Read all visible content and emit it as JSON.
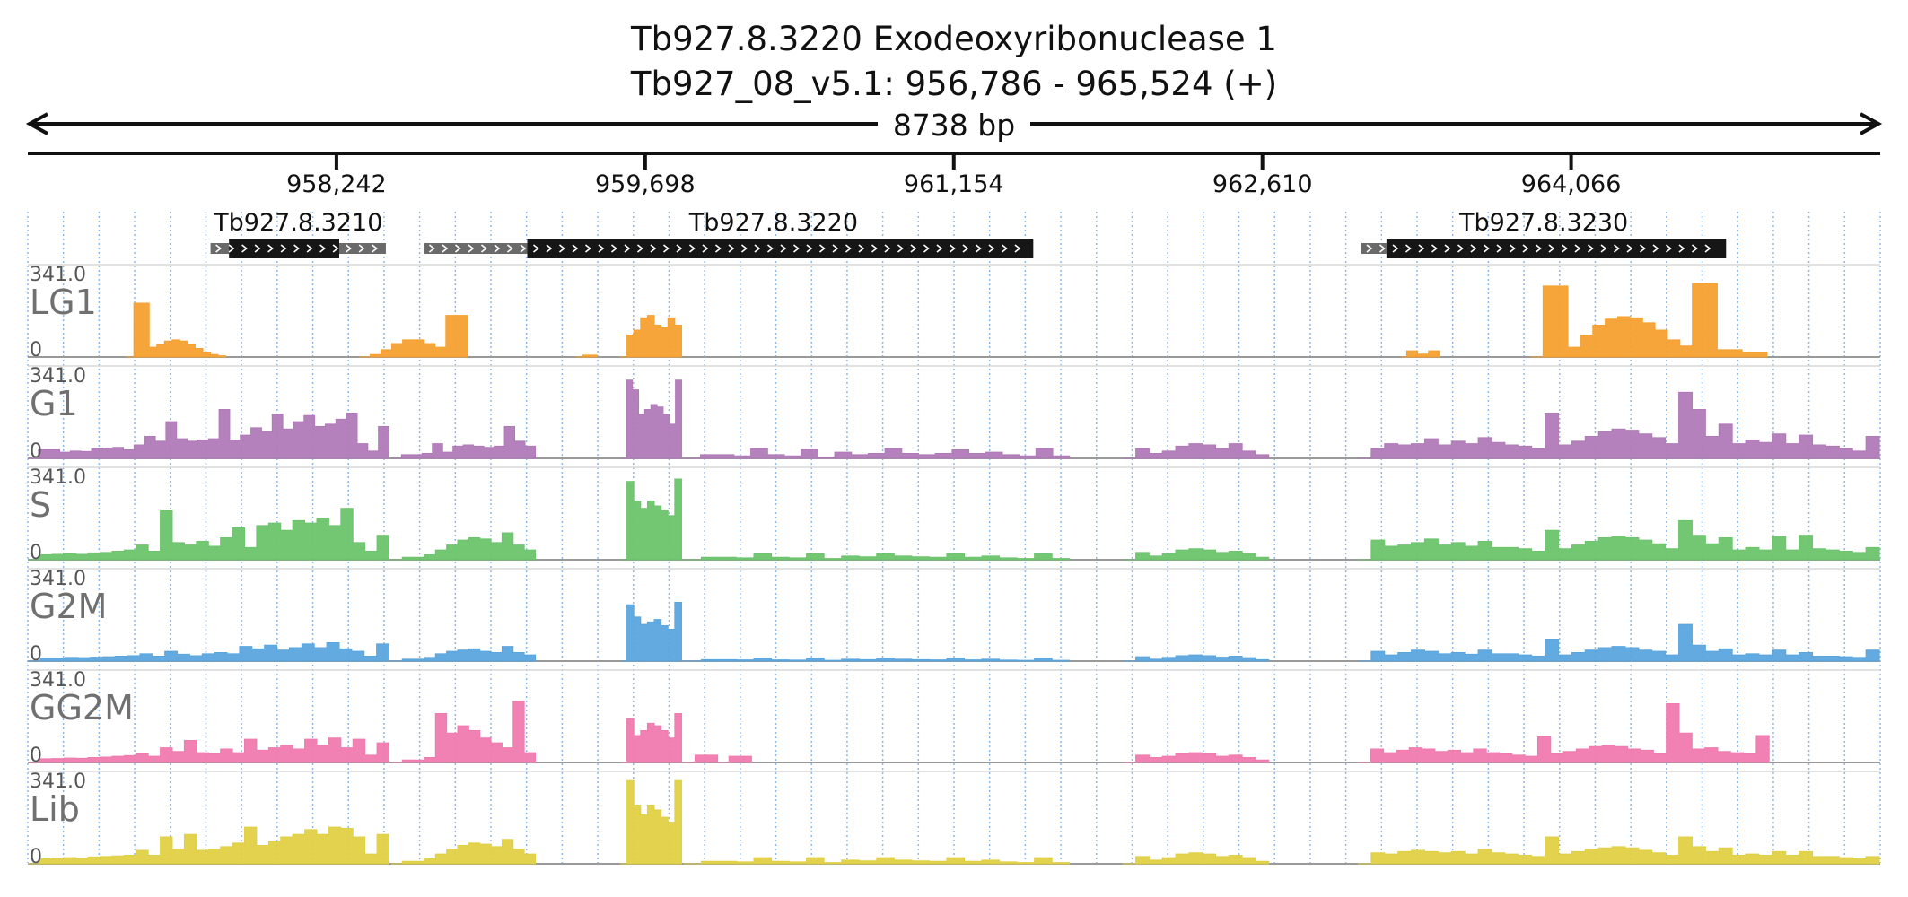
{
  "header": {
    "title": "Tb927.8.3220  Exodeoxyribonuclease 1",
    "location": "Tb927_08_v5.1: 956,786 - 965,524 (+)",
    "length_label": "8738 bp"
  },
  "chart_data": {
    "type": "area",
    "region": {
      "chromosome": "Tb927_08_v5.1",
      "start": 956786,
      "end": 965524,
      "strand": "+"
    },
    "xlim": [
      956786,
      965524
    ],
    "x_ticks": [
      958242,
      959698,
      961154,
      962610,
      964066
    ],
    "x_tick_labels": [
      "958,242",
      "959,698",
      "961,154",
      "962,610",
      "964,066"
    ],
    "grid": true,
    "genes": [
      {
        "name": "Tb927.8.3210",
        "utr_start": 957648,
        "cds_start": 957735,
        "cds_end": 958255,
        "utr_end": 958475
      },
      {
        "name": "Tb927.8.3220",
        "utr_start": 958655,
        "cds_start": 959142,
        "cds_end": 961529,
        "utr_end": 961529
      },
      {
        "name": "Tb927.8.3230",
        "utr_start": 963077,
        "cds_start": 963195,
        "cds_end": 964797,
        "utr_end": 964797
      }
    ],
    "y_max_label": "341.0",
    "y_min_label": "0",
    "ylim": [
      0,
      341
    ],
    "series": [
      {
        "name": "LG1",
        "color": "#f5a030",
        "segments": [
          {
            "start": 957250,
            "end": 957720,
            "values": [
              0,
              220,
              220,
              40,
              50,
              65,
              70,
              65,
              50,
              35,
              20,
              10,
              5,
              0
            ]
          },
          {
            "start": 958350,
            "end": 958860,
            "values": [
              0,
              10,
              30,
              55,
              70,
              70,
              55,
              40,
              170,
              170,
              0
            ]
          },
          {
            "start": 959370,
            "end": 959470,
            "values": [
              0,
              8,
              8,
              0
            ]
          },
          {
            "start": 959580,
            "end": 959870,
            "values": [
              0,
              90,
              110,
              160,
              170,
              130,
              120,
              160,
              130,
              0
            ]
          },
          {
            "start": 963265,
            "end": 963445,
            "values": [
              0,
              25,
              25,
              12,
              12,
              25,
              25,
              0
            ]
          },
          {
            "start": 963875,
            "end": 964990,
            "values": [
              0,
              290,
              290,
              40,
              90,
              130,
              155,
              165,
              160,
              140,
              110,
              70,
              45,
              300,
              300,
              30,
              30,
              20,
              20,
              0
            ]
          }
        ]
      },
      {
        "name": "G1",
        "color": "#b07ab8",
        "segments": [
          {
            "start": 956786,
            "end": 958490,
            "values": [
              0,
              35,
              35,
              25,
              30,
              28,
              40,
              42,
              45,
              35,
              55,
              90,
              70,
              150,
              80,
              70,
              75,
              80,
              200,
              75,
              95,
              125,
              110,
              180,
              120,
              150,
              175,
              130,
              140,
              160,
              185,
              60,
              30,
              130,
              0
            ]
          },
          {
            "start": 958500,
            "end": 959180,
            "values": [
              0,
              15,
              15,
              20,
              60,
              25,
              50,
              55,
              50,
              45,
              50,
              130,
              70,
              50,
              0
            ]
          },
          {
            "start": 959580,
            "end": 959870,
            "values": [
              0,
              320,
              280,
              180,
              200,
              220,
              210,
              180,
              140,
              320,
              0
            ]
          },
          {
            "start": 959880,
            "end": 961700,
            "values": [
              0,
              15,
              15,
              10,
              40,
              15,
              10,
              35,
              5,
              25,
              15,
              20,
              40,
              20,
              15,
              20,
              35,
              20,
              25,
              15,
              10,
              40,
              10,
              0
            ]
          },
          {
            "start": 961950,
            "end": 962640,
            "values": [
              0,
              40,
              20,
              30,
              50,
              60,
              55,
              40,
              60,
              30,
              15,
              0
            ]
          },
          {
            "start": 963060,
            "end": 965520,
            "values": [
              0,
              40,
              60,
              55,
              60,
              80,
              55,
              70,
              60,
              85,
              65,
              55,
              50,
              40,
              185,
              55,
              70,
              90,
              110,
              120,
              115,
              100,
              85,
              60,
              270,
              200,
              90,
              140,
              60,
              75,
              65,
              100,
              60,
              95,
              55,
              50,
              40,
              30,
              90,
              0
            ]
          }
        ]
      },
      {
        "name": "S",
        "color": "#6cc46c",
        "segments": [
          {
            "start": 956786,
            "end": 958490,
            "values": [
              0,
              20,
              22,
              25,
              22,
              28,
              30,
              35,
              40,
              60,
              35,
              200,
              70,
              60,
              75,
              55,
              90,
              130,
              50,
              140,
              150,
              120,
              160,
              150,
              170,
              140,
              210,
              70,
              35,
              100,
              0
            ]
          },
          {
            "start": 958500,
            "end": 959180,
            "values": [
              0,
              10,
              10,
              20,
              40,
              60,
              80,
              90,
              85,
              70,
              110,
              60,
              40,
              0
            ]
          },
          {
            "start": 959580,
            "end": 959870,
            "values": [
              0,
              320,
              240,
              210,
              240,
              220,
              200,
              180,
              330,
              0
            ]
          },
          {
            "start": 959880,
            "end": 961700,
            "values": [
              0,
              10,
              10,
              8,
              25,
              10,
              8,
              25,
              5,
              15,
              12,
              25,
              15,
              12,
              10,
              25,
              10,
              15,
              8,
              5,
              25,
              5,
              0
            ]
          },
          {
            "start": 961950,
            "end": 962640,
            "values": [
              0,
              30,
              15,
              25,
              40,
              45,
              40,
              30,
              35,
              25,
              10,
              0
            ]
          },
          {
            "start": 963060,
            "end": 965520,
            "values": [
              0,
              80,
              55,
              60,
              70,
              85,
              60,
              70,
              55,
              75,
              50,
              50,
              45,
              35,
              120,
              45,
              60,
              75,
              90,
              95,
              90,
              80,
              65,
              45,
              160,
              100,
              65,
              90,
              40,
              50,
              40,
              95,
              40,
              100,
              45,
              40,
              35,
              30,
              50,
              0
            ]
          }
        ]
      },
      {
        "name": "G2M",
        "color": "#5aa5de",
        "segments": [
          {
            "start": 956786,
            "end": 958490,
            "values": [
              0,
              12,
              12,
              15,
              14,
              16,
              18,
              20,
              22,
              30,
              20,
              40,
              28,
              22,
              30,
              35,
              30,
              60,
              50,
              65,
              45,
              55,
              70,
              55,
              75,
              50,
              40,
              20,
              70,
              0
            ]
          },
          {
            "start": 958500,
            "end": 959180,
            "values": [
              0,
              8,
              8,
              15,
              30,
              40,
              45,
              50,
              40,
              35,
              60,
              35,
              25,
              0
            ]
          },
          {
            "start": 959580,
            "end": 959870,
            "values": [
              0,
              230,
              180,
              150,
              160,
              170,
              145,
              130,
              240,
              0
            ]
          },
          {
            "start": 959880,
            "end": 961700,
            "values": [
              0,
              6,
              6,
              5,
              12,
              5,
              4,
              12,
              3,
              8,
              6,
              12,
              8,
              6,
              5,
              12,
              5,
              8,
              4,
              3,
              12,
              3,
              0
            ]
          },
          {
            "start": 961950,
            "end": 962640,
            "values": [
              0,
              18,
              8,
              15,
              22,
              25,
              22,
              16,
              20,
              14,
              6,
              0
            ]
          },
          {
            "start": 963060,
            "end": 965520,
            "values": [
              0,
              40,
              25,
              35,
              45,
              40,
              30,
              35,
              28,
              45,
              30,
              30,
              25,
              20,
              90,
              25,
              35,
              45,
              55,
              60,
              55,
              45,
              40,
              25,
              150,
              65,
              40,
              50,
              25,
              30,
              25,
              45,
              25,
              35,
              20,
              20,
              18,
              15,
              45,
              0
            ]
          }
        ]
      },
      {
        "name": "GG2M",
        "color": "#f07aae",
        "segments": [
          {
            "start": 956786,
            "end": 958490,
            "values": [
              0,
              15,
              16,
              18,
              17,
              20,
              22,
              25,
              28,
              35,
              25,
              60,
              45,
              90,
              40,
              35,
              55,
              40,
              95,
              50,
              60,
              70,
              55,
              95,
              70,
              100,
              60,
              95,
              30,
              80,
              0
            ]
          },
          {
            "start": 958500,
            "end": 959180,
            "values": [
              0,
              10,
              10,
              20,
              200,
              120,
              150,
              130,
              100,
              80,
              60,
              250,
              40,
              0
            ]
          },
          {
            "start": 959580,
            "end": 959870,
            "values": [
              0,
              180,
              110,
              130,
              160,
              150,
              130,
              100,
              200,
              0
            ]
          },
          {
            "start": 959880,
            "end": 960200,
            "values": [
              0,
              30,
              30,
              0,
              25,
              25,
              0
            ]
          },
          {
            "start": 961950,
            "end": 962640,
            "values": [
              0,
              30,
              20,
              25,
              35,
              40,
              35,
              25,
              30,
              20,
              10,
              0
            ]
          },
          {
            "start": 963060,
            "end": 965000,
            "values": [
              0,
              55,
              40,
              50,
              60,
              55,
              45,
              50,
              40,
              55,
              40,
              35,
              30,
              25,
              105,
              35,
              45,
              55,
              65,
              70,
              65,
              55,
              50,
              35,
              240,
              120,
              55,
              60,
              45,
              40,
              35,
              110,
              0
            ]
          }
        ]
      },
      {
        "name": "Lib",
        "color": "#e0d045",
        "segments": [
          {
            "start": 956786,
            "end": 958490,
            "values": [
              0,
              20,
              22,
              25,
              22,
              28,
              30,
              32,
              35,
              55,
              35,
              110,
              60,
              120,
              55,
              60,
              70,
              85,
              150,
              75,
              90,
              110,
              120,
              140,
              120,
              150,
              145,
              110,
              40,
              120,
              0
            ]
          },
          {
            "start": 958500,
            "end": 959180,
            "values": [
              0,
              10,
              10,
              20,
              40,
              60,
              75,
              85,
              80,
              70,
              100,
              60,
              40,
              0
            ]
          },
          {
            "start": 959580,
            "end": 959870,
            "values": [
              0,
              340,
              240,
              200,
              240,
              220,
              190,
              170,
              340,
              0
            ]
          },
          {
            "start": 959880,
            "end": 961700,
            "values": [
              0,
              10,
              10,
              8,
              25,
              10,
              8,
              25,
              5,
              15,
              12,
              25,
              15,
              12,
              10,
              25,
              10,
              15,
              8,
              5,
              25,
              5,
              0
            ]
          },
          {
            "start": 961950,
            "end": 962640,
            "values": [
              0,
              30,
              15,
              25,
              40,
              45,
              40,
              30,
              35,
              25,
              10,
              0
            ]
          },
          {
            "start": 963060,
            "end": 965520,
            "values": [
              0,
              45,
              40,
              50,
              55,
              50,
              45,
              50,
              40,
              60,
              45,
              40,
              35,
              30,
              110,
              40,
              50,
              60,
              65,
              70,
              65,
              55,
              45,
              35,
              110,
              70,
              50,
              65,
              35,
              40,
              35,
              50,
              35,
              50,
              30,
              30,
              25,
              20,
              30,
              0
            ]
          }
        ]
      }
    ]
  }
}
